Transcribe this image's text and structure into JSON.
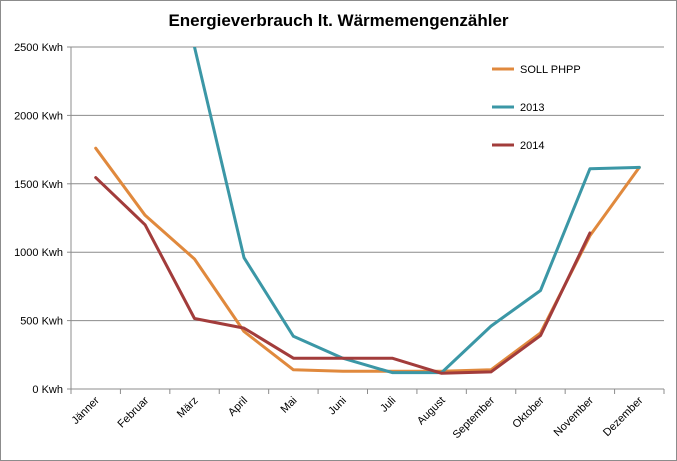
{
  "chart_data": {
    "type": "line",
    "title": "Energieverbrauch lt. Wärmemengenzähler",
    "xlabel": "",
    "ylabel": "",
    "categories": [
      "Jänner",
      "Februar",
      "März",
      "April",
      "Mai",
      "Juni",
      "Juli",
      "August",
      "September",
      "Oktober",
      "November",
      "Dezember"
    ],
    "ylim": [
      0,
      2500
    ],
    "yticks": [
      0,
      500,
      1000,
      1500,
      2000,
      2500
    ],
    "ytick_labels": [
      "0 Kwh",
      "500 Kwh",
      "1000 Kwh",
      "1500 Kwh",
      "2000 Kwh",
      "2500 Kwh"
    ],
    "grid": true,
    "legend_position": "top-right",
    "series": [
      {
        "name": "SOLL PHPP",
        "color": "#E0893D",
        "values": [
          1760,
          1270,
          950,
          420,
          140,
          130,
          130,
          130,
          140,
          410,
          1120,
          1620
        ]
      },
      {
        "name": "2013",
        "color": "#3B97A6",
        "values": [
          null,
          null,
          2500,
          960,
          385,
          225,
          120,
          120,
          460,
          720,
          1610,
          1620
        ]
      },
      {
        "name": "2014",
        "color": "#A23C3B",
        "values": [
          1545,
          1200,
          515,
          445,
          225,
          225,
          225,
          115,
          125,
          390,
          1140,
          null
        ]
      }
    ]
  }
}
